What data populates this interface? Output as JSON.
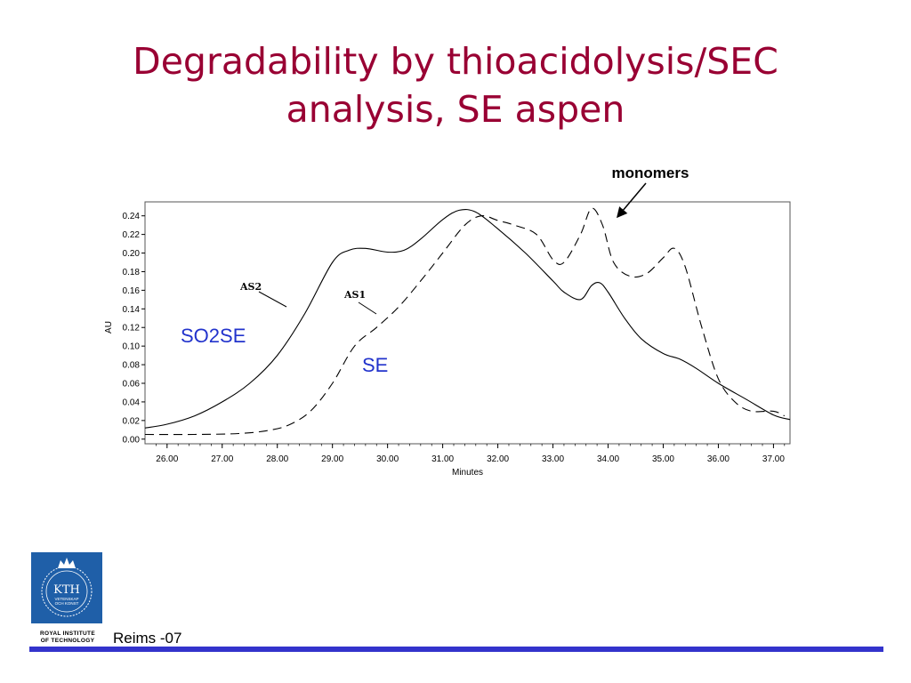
{
  "title": {
    "line1": "Degradability by thioacidolysis/SEC",
    "line2": "analysis, SE aspen"
  },
  "colors": {
    "title": "#990033",
    "series_label": "#2233cc",
    "bottom_bar": "#3333cc",
    "logo": "#1f5fa8"
  },
  "chart_data": {
    "type": "line",
    "xlabel": "Minutes",
    "ylabel": "AU",
    "xlim": [
      25.6,
      37.3
    ],
    "ylim": [
      -0.005,
      0.255
    ],
    "x_ticks": [
      "26.00",
      "27.00",
      "28.00",
      "29.00",
      "30.00",
      "31.00",
      "32.00",
      "33.00",
      "34.00",
      "35.00",
      "36.00",
      "37.00"
    ],
    "y_ticks": [
      "0.00",
      "0.02",
      "0.04",
      "0.06",
      "0.08",
      "0.10",
      "0.12",
      "0.14",
      "0.16",
      "0.18",
      "0.20",
      "0.22",
      "0.24"
    ],
    "grid": false,
    "series": [
      {
        "name": "AS2",
        "style": "solid",
        "points": [
          [
            25.6,
            0.012
          ],
          [
            26.0,
            0.016
          ],
          [
            26.5,
            0.025
          ],
          [
            27.0,
            0.04
          ],
          [
            27.5,
            0.06
          ],
          [
            28.0,
            0.09
          ],
          [
            28.5,
            0.135
          ],
          [
            29.0,
            0.19
          ],
          [
            29.3,
            0.203
          ],
          [
            29.6,
            0.205
          ],
          [
            30.0,
            0.201
          ],
          [
            30.3,
            0.203
          ],
          [
            30.6,
            0.215
          ],
          [
            31.0,
            0.236
          ],
          [
            31.3,
            0.246
          ],
          [
            31.6,
            0.244
          ],
          [
            32.0,
            0.226
          ],
          [
            32.5,
            0.2
          ],
          [
            33.0,
            0.17
          ],
          [
            33.2,
            0.158
          ],
          [
            33.5,
            0.15
          ],
          [
            33.7,
            0.165
          ],
          [
            33.85,
            0.168
          ],
          [
            34.0,
            0.158
          ],
          [
            34.3,
            0.13
          ],
          [
            34.6,
            0.108
          ],
          [
            35.0,
            0.092
          ],
          [
            35.3,
            0.086
          ],
          [
            35.6,
            0.076
          ],
          [
            36.0,
            0.06
          ],
          [
            36.5,
            0.043
          ],
          [
            37.0,
            0.026
          ],
          [
            37.3,
            0.021
          ]
        ]
      },
      {
        "name": "AS1",
        "style": "dashed",
        "points": [
          [
            25.6,
            0.005
          ],
          [
            26.5,
            0.005
          ],
          [
            27.3,
            0.006
          ],
          [
            27.8,
            0.009
          ],
          [
            28.2,
            0.015
          ],
          [
            28.6,
            0.03
          ],
          [
            29.0,
            0.06
          ],
          [
            29.4,
            0.1
          ],
          [
            29.8,
            0.12
          ],
          [
            30.2,
            0.142
          ],
          [
            30.6,
            0.17
          ],
          [
            31.0,
            0.2
          ],
          [
            31.4,
            0.23
          ],
          [
            31.7,
            0.24
          ],
          [
            32.0,
            0.235
          ],
          [
            32.3,
            0.23
          ],
          [
            32.7,
            0.22
          ],
          [
            33.0,
            0.193
          ],
          [
            33.2,
            0.19
          ],
          [
            33.5,
            0.22
          ],
          [
            33.7,
            0.248
          ],
          [
            33.9,
            0.23
          ],
          [
            34.1,
            0.19
          ],
          [
            34.4,
            0.175
          ],
          [
            34.7,
            0.178
          ],
          [
            35.0,
            0.195
          ],
          [
            35.2,
            0.205
          ],
          [
            35.4,
            0.185
          ],
          [
            35.7,
            0.12
          ],
          [
            36.0,
            0.065
          ],
          [
            36.3,
            0.04
          ],
          [
            36.6,
            0.03
          ],
          [
            37.0,
            0.03
          ],
          [
            37.2,
            0.025
          ]
        ]
      }
    ],
    "annotations": {
      "as2": "AS2",
      "as1": "AS1",
      "so2se": "SO2SE",
      "se": "SE",
      "monomers": "monomers"
    }
  },
  "footer": {
    "text": "Reims -07",
    "logo_text": "KTH",
    "logo_subtext1": "VETENSKAP",
    "logo_subtext2": "OCH KONST",
    "logo_caption_line1": "ROYAL INSTITUTE",
    "logo_caption_line2": "OF TECHNOLOGY"
  }
}
